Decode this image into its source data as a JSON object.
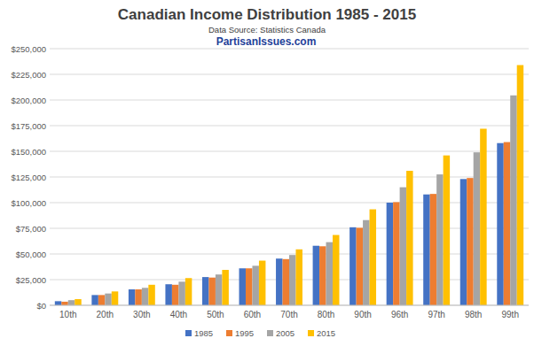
{
  "chart_data": {
    "type": "bar",
    "title": "Canadian Income Distribution 1985 - 2015",
    "subtitle": "Data Source: Statistics Canada",
    "annotations": [
      "PartisanIssues.com"
    ],
    "categories": [
      "10th",
      "20th",
      "30th",
      "40th",
      "50th",
      "60th",
      "70th",
      "80th",
      "90th",
      "96th",
      "97th",
      "98th",
      "99th"
    ],
    "series": [
      {
        "name": "1985",
        "color": "#4472c4",
        "values": [
          4000,
          10000,
          15500,
          20500,
          27500,
          36000,
          45500,
          58000,
          76000,
          100000,
          108000,
          123000,
          158000
        ]
      },
      {
        "name": "1995",
        "color": "#ed7d31",
        "values": [
          3500,
          10000,
          15500,
          20000,
          27000,
          36000,
          45000,
          57500,
          75500,
          100500,
          108500,
          124000,
          159000
        ]
      },
      {
        "name": "2005",
        "color": "#a5a5a5",
        "values": [
          5000,
          11500,
          17000,
          23000,
          30000,
          38500,
          49000,
          61500,
          83000,
          115000,
          127500,
          149000,
          204500
        ]
      },
      {
        "name": "2015",
        "color": "#ffc000",
        "values": [
          6000,
          13500,
          20000,
          26500,
          34500,
          43500,
          54500,
          68500,
          93500,
          131000,
          146000,
          172000,
          234000
        ]
      }
    ],
    "ylim": [
      0,
      250000
    ],
    "yticks": [
      {
        "value": 0,
        "label": "$0"
      },
      {
        "value": 25000,
        "label": "$25,000"
      },
      {
        "value": 50000,
        "label": "$50,000"
      },
      {
        "value": 75000,
        "label": "$75,000"
      },
      {
        "value": 100000,
        "label": "$100,000"
      },
      {
        "value": 125000,
        "label": "$125,000"
      },
      {
        "value": 150000,
        "label": "$150,000"
      },
      {
        "value": 175000,
        "label": "$175,000"
      },
      {
        "value": 200000,
        "label": "$200,000"
      },
      {
        "value": 225000,
        "label": "$225,000"
      },
      {
        "value": 250000,
        "label": "$250,000"
      }
    ],
    "grid": true,
    "legend": "bottom"
  }
}
